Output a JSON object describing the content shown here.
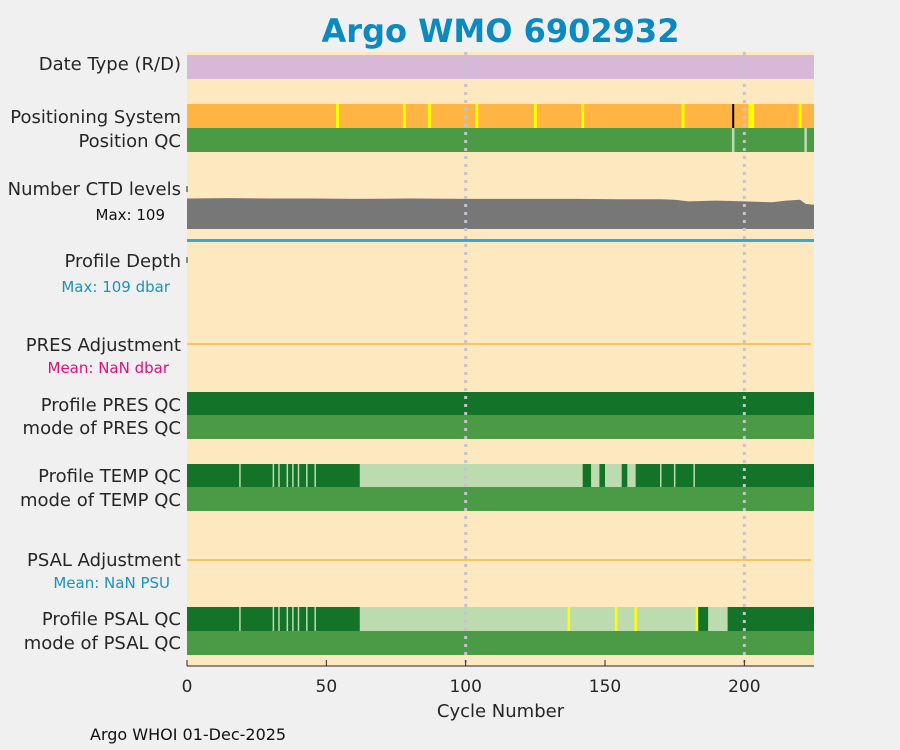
{
  "title": "Argo WMO 6902932",
  "footer": "Argo WHOI 01-Dec-2025",
  "colors": {
    "background": "#fde8bf",
    "date_type": "#d8b8d8",
    "positioning": "#ffb444",
    "position_yellow": "#ffff00",
    "qc_good": "#4a9a46",
    "qc_dark": "#137328",
    "qc_light": "#bcdcb0",
    "ctd_gray": "#777777",
    "depth_line": "#3aa8cc",
    "adjust_line": "#f7b54a",
    "grid": "#c4c4cc",
    "pres_mean": "#e0107a",
    "blue_text": "#1a92c0"
  },
  "chart_data": {
    "type": "table",
    "xlabel": "Cycle Number",
    "xlim": [
      0,
      225
    ],
    "xticks": [
      0,
      50,
      100,
      150,
      200
    ],
    "grid_x": [
      100,
      200
    ],
    "rows": {
      "date_type": {
        "label": "Date Type (R/D)"
      },
      "positioning": {
        "label": "Positioning System",
        "marks": [
          54,
          78,
          87,
          104,
          125,
          142,
          178,
          202,
          203,
          220
        ],
        "black_mark": 196
      },
      "position_qc": {
        "label": "Position QC",
        "marks": [
          196,
          222
        ]
      },
      "ctd_levels": {
        "label": "Number CTD levels",
        "max_label": "Max: 109",
        "profile": [
          [
            0,
            103
          ],
          [
            15,
            104
          ],
          [
            30,
            103
          ],
          [
            45,
            103
          ],
          [
            60,
            102
          ],
          [
            80,
            103
          ],
          [
            100,
            102
          ],
          [
            120,
            102
          ],
          [
            140,
            102
          ],
          [
            155,
            101
          ],
          [
            170,
            101
          ],
          [
            175,
            100
          ],
          [
            180,
            96
          ],
          [
            190,
            98
          ],
          [
            200,
            96
          ],
          [
            210,
            94
          ],
          [
            215,
            98
          ],
          [
            220,
            100
          ],
          [
            222,
            90
          ],
          [
            225,
            88
          ]
        ],
        "min": 30,
        "max": 109
      },
      "profile_depth": {
        "label": "Profile Depth",
        "max_label": "Max:  109 dbar"
      },
      "pres_adjustment": {
        "label": "PRES Adjustment",
        "mean_label": "Mean:  NaN dbar"
      },
      "profile_pres_qc": {
        "label": "Profile PRES QC"
      },
      "mode_pres_qc": {
        "label": "mode of PRES QC"
      },
      "profile_temp_qc": {
        "label": "Profile TEMP QC",
        "light_ranges": [
          [
            62,
            142
          ],
          [
            145,
            148
          ],
          [
            150,
            156
          ],
          [
            158,
            161
          ]
        ],
        "white_marks": [
          19,
          31,
          33,
          36,
          38,
          40,
          43,
          46,
          64,
          66,
          170,
          175,
          182
        ]
      },
      "mode_temp_qc": {
        "label": "mode of TEMP QC"
      },
      "psal_adjustment": {
        "label": "PSAL Adjustment",
        "mean_label": "Mean:  NaN PSU"
      },
      "profile_psal_qc": {
        "label": "Profile PSAL QC",
        "light_ranges": [
          [
            62,
            183
          ],
          [
            187,
            194
          ]
        ],
        "white_marks": [
          19,
          31,
          33,
          36,
          38,
          40,
          43,
          46
        ],
        "yellow_marks": [
          137,
          154,
          161,
          183
        ]
      },
      "mode_psal_qc": {
        "label": "mode of PSAL QC"
      }
    }
  }
}
